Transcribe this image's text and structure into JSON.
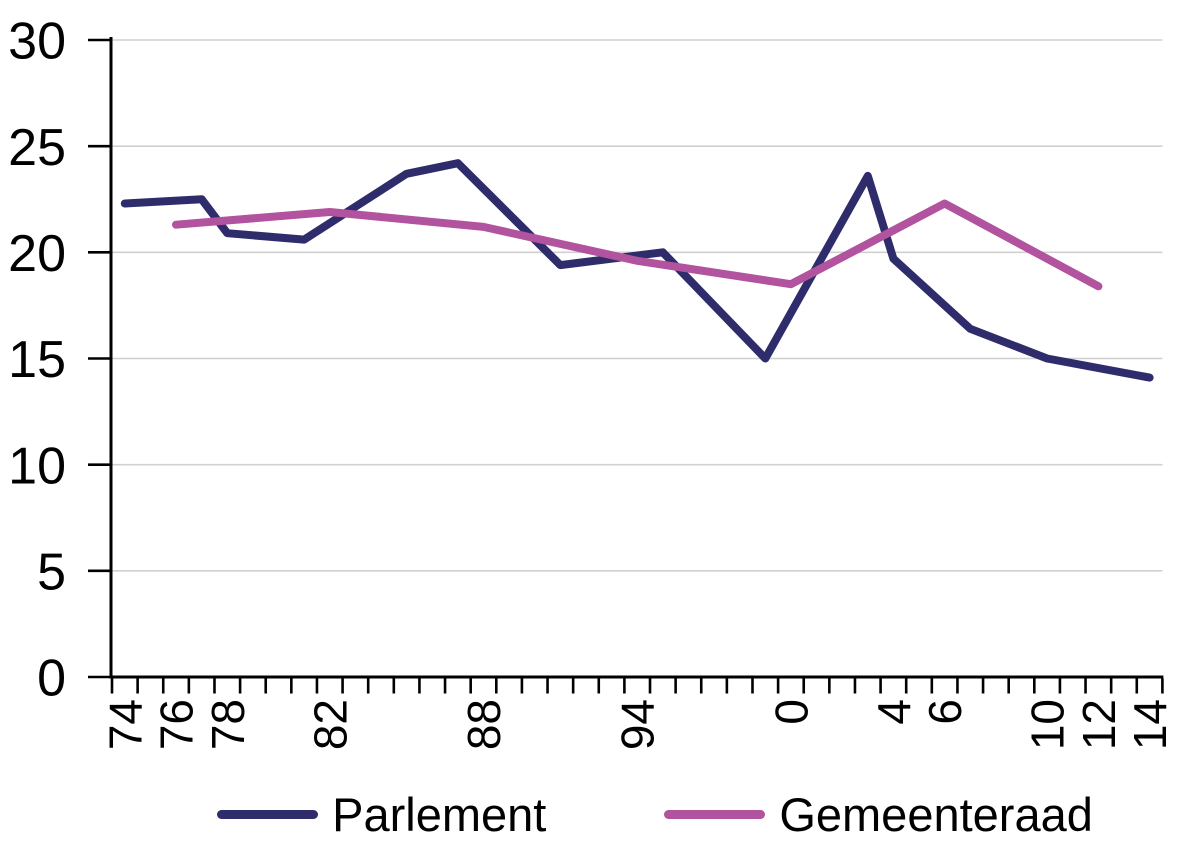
{
  "chart_data": {
    "type": "line",
    "title": "",
    "x_axis": {
      "kind": "category_years",
      "first_year": 1974,
      "last_year": 2014,
      "tick_every": 1,
      "labels": [
        {
          "year": 1974,
          "text": "74"
        },
        {
          "year": 1976,
          "text": "76"
        },
        {
          "year": 1978,
          "text": "78"
        },
        {
          "year": 1982,
          "text": "82"
        },
        {
          "year": 1988,
          "text": "88"
        },
        {
          "year": 1994,
          "text": "94"
        },
        {
          "year": 2000,
          "text": "0"
        },
        {
          "year": 2004,
          "text": "4"
        },
        {
          "year": 2006,
          "text": "6"
        },
        {
          "year": 2010,
          "text": "10"
        },
        {
          "year": 2012,
          "text": "12"
        },
        {
          "year": 2014,
          "text": "14"
        }
      ]
    },
    "y_axis": {
      "min": 0,
      "max": 30,
      "tick_step": 5,
      "tick_labels": [
        "0",
        "5",
        "10",
        "15",
        "20",
        "25",
        "30"
      ]
    },
    "grid": {
      "horizontal": true,
      "vertical": false,
      "color": "#D0D0D0"
    },
    "axis_color": "#000000",
    "series": [
      {
        "name": "Parlement",
        "color": "#2E2C6A",
        "points": [
          [
            1974,
            22.3
          ],
          [
            1977,
            22.5
          ],
          [
            1978,
            20.9
          ],
          [
            1981,
            20.6
          ],
          [
            1985,
            23.7
          ],
          [
            1987,
            24.2
          ],
          [
            1991,
            19.4
          ],
          [
            1995,
            20.0
          ],
          [
            1999,
            15.0
          ],
          [
            2003,
            23.6
          ],
          [
            2004,
            19.7
          ],
          [
            2007,
            16.4
          ],
          [
            2010,
            15.0
          ],
          [
            2014,
            14.1
          ]
        ]
      },
      {
        "name": "Gemeenteraad",
        "color": "#B2539F",
        "points": [
          [
            1976,
            21.3
          ],
          [
            1982,
            21.9
          ],
          [
            1988,
            21.2
          ],
          [
            1994,
            19.6
          ],
          [
            2000,
            18.5
          ],
          [
            2006,
            22.3
          ],
          [
            2012,
            18.4
          ]
        ]
      }
    ],
    "legend": {
      "position": "bottom",
      "items": [
        "Parlement",
        "Gemeenteraad"
      ]
    }
  }
}
